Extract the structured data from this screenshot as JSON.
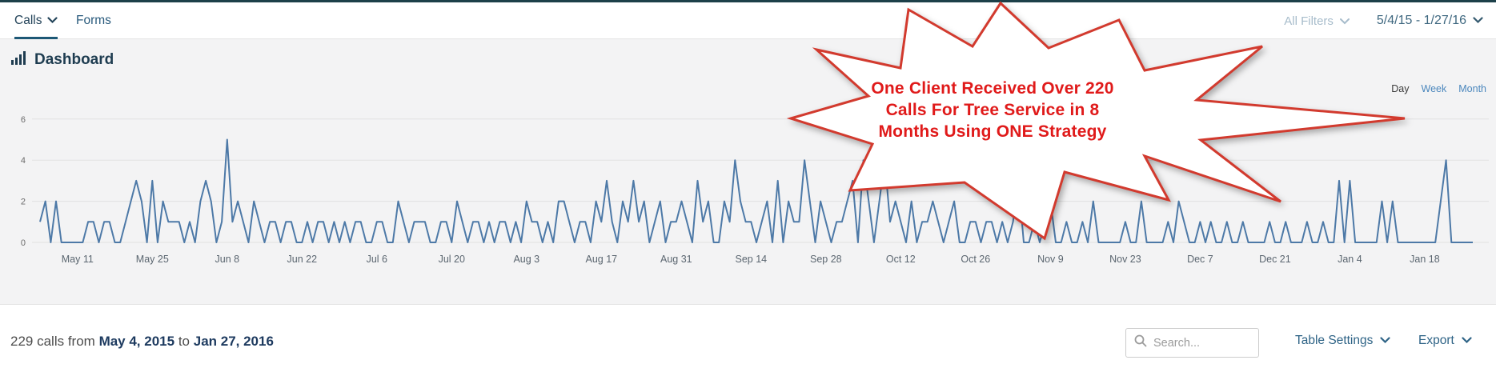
{
  "header": {
    "tabs": [
      {
        "label": "Calls",
        "active": true
      },
      {
        "label": "Forms",
        "active": false
      }
    ],
    "filters_label": "All Filters",
    "date_range": "5/4/15 - 1/27/16"
  },
  "dashboard": {
    "title": "Dashboard",
    "granularity": [
      {
        "label": "Day",
        "active": true
      },
      {
        "label": "Week",
        "active": false
      },
      {
        "label": "Month",
        "active": false
      }
    ]
  },
  "annotation": {
    "lines": [
      "One Client Received Over 220",
      "Calls For Tree Service in 8",
      "Months Using ONE Strategy"
    ],
    "fill": "#ffffff",
    "stroke": "#d23a2e",
    "text_color": "#e01a1a"
  },
  "chart_data": {
    "type": "line",
    "title": "Calls per day",
    "ylim": [
      0,
      6
    ],
    "y_ticks": [
      0,
      2,
      4,
      6
    ],
    "x_ticks": [
      {
        "label": "May 11",
        "day": 7
      },
      {
        "label": "May 25",
        "day": 21
      },
      {
        "label": "Jun 8",
        "day": 35
      },
      {
        "label": "Jun 22",
        "day": 49
      },
      {
        "label": "Jul 6",
        "day": 63
      },
      {
        "label": "Jul 20",
        "day": 77
      },
      {
        "label": "Aug 3",
        "day": 91
      },
      {
        "label": "Aug 17",
        "day": 105
      },
      {
        "label": "Aug 31",
        "day": 119
      },
      {
        "label": "Sep 14",
        "day": 133
      },
      {
        "label": "Sep 28",
        "day": 147
      },
      {
        "label": "Oct 12",
        "day": 161
      },
      {
        "label": "Oct 26",
        "day": 175
      },
      {
        "label": "Nov 9",
        "day": 189
      },
      {
        "label": "Nov 23",
        "day": 203
      },
      {
        "label": "Dec 7",
        "day": 217
      },
      {
        "label": "Dec 21",
        "day": 231
      },
      {
        "label": "Jan 4",
        "day": 245
      },
      {
        "label": "Jan 18",
        "day": 259
      }
    ],
    "start_date": "May 4, 2015",
    "end_date": "Jan 27, 2016",
    "total_calls": 229,
    "values": [
      1,
      2,
      0,
      2,
      0,
      0,
      0,
      0,
      0,
      1,
      1,
      0,
      1,
      1,
      0,
      0,
      1,
      2,
      3,
      2,
      0,
      3,
      0,
      2,
      1,
      1,
      1,
      0,
      1,
      0,
      2,
      3,
      2,
      0,
      1,
      5,
      1,
      2,
      1,
      0,
      2,
      1,
      0,
      1,
      1,
      0,
      1,
      1,
      0,
      0,
      1,
      0,
      1,
      1,
      0,
      1,
      0,
      1,
      0,
      1,
      1,
      0,
      0,
      1,
      1,
      0,
      0,
      2,
      1,
      0,
      1,
      1,
      1,
      0,
      0,
      1,
      1,
      0,
      2,
      1,
      0,
      1,
      1,
      0,
      1,
      0,
      1,
      1,
      0,
      1,
      0,
      2,
      1,
      1,
      0,
      1,
      0,
      2,
      2,
      1,
      0,
      1,
      1,
      0,
      2,
      1,
      3,
      1,
      0,
      2,
      1,
      3,
      1,
      2,
      0,
      1,
      2,
      0,
      1,
      1,
      2,
      1,
      0,
      3,
      1,
      2,
      0,
      0,
      2,
      1,
      4,
      2,
      1,
      1,
      0,
      1,
      2,
      0,
      3,
      0,
      2,
      1,
      1,
      4,
      2,
      0,
      2,
      1,
      0,
      1,
      1,
      2,
      3,
      0,
      4,
      2,
      0,
      2,
      4,
      1,
      2,
      1,
      0,
      2,
      0,
      1,
      1,
      2,
      1,
      0,
      1,
      2,
      0,
      0,
      1,
      1,
      0,
      1,
      1,
      0,
      1,
      0,
      1,
      3,
      0,
      0,
      1,
      0,
      1,
      2,
      0,
      0,
      1,
      0,
      0,
      1,
      0,
      2,
      0,
      0,
      0,
      0,
      0,
      1,
      0,
      0,
      2,
      0,
      0,
      0,
      0,
      1,
      0,
      2,
      1,
      0,
      0,
      1,
      0,
      1,
      0,
      0,
      1,
      0,
      0,
      1,
      0,
      0,
      0,
      0,
      1,
      0,
      0,
      1,
      0,
      0,
      0,
      1,
      0,
      0,
      1,
      0,
      0,
      3,
      0,
      3,
      0,
      0,
      0,
      0,
      0,
      2,
      0,
      2,
      0,
      0,
      0,
      0,
      0,
      0,
      0,
      0,
      2,
      4,
      0,
      0,
      0,
      0,
      0
    ]
  },
  "footer": {
    "summary_prefix": "229 calls from",
    "start_date": "May 4, 2015",
    "to_word": "to",
    "end_date": "Jan 27, 2016",
    "search_placeholder": "Search...",
    "table_settings_label": "Table Settings",
    "export_label": "Export"
  },
  "colors": {
    "line": "#4d79a7",
    "grid": "#e1e1e1",
    "panel_bg": "#f3f3f4",
    "accent_dark": "#1e3c50",
    "link_blue": "#4b87bd"
  }
}
